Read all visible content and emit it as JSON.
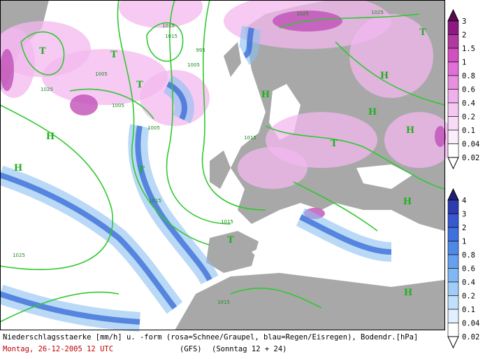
{
  "map": {
    "labels": [
      "1025",
      "1025",
      "1015",
      "1015",
      "995",
      "1005",
      "1005",
      "1005",
      "1025",
      "1005",
      "1015",
      "1015",
      "1015",
      "1025",
      "1015",
      "H",
      "H",
      "H",
      "H",
      "H",
      "H",
      "H",
      "H",
      "T",
      "T",
      "T",
      "T",
      "T",
      "T",
      "T"
    ]
  },
  "legends": {
    "snow": {
      "levels": [
        "3",
        "2",
        "1.5",
        "1",
        "0.8",
        "0.6",
        "0.4",
        "0.2",
        "0.1",
        "0.04",
        "0.02"
      ]
    },
    "rain": {
      "levels": [
        "4",
        "3",
        "2",
        "1",
        "0.8",
        "0.6",
        "0.4",
        "0.2",
        "0.1",
        "0.04",
        "0.02"
      ]
    }
  },
  "caption": {
    "description": "Niederschlagsstaerke [mm/h] u. -form (rosa=Schnee/Graupel, blau=Regen/Eisregen), Bodendr.[hPa]",
    "date": "Montag, 26-12-2005  12 UTC",
    "model": "(GFS)",
    "run": "(Sonntag 12 + 24)"
  }
}
